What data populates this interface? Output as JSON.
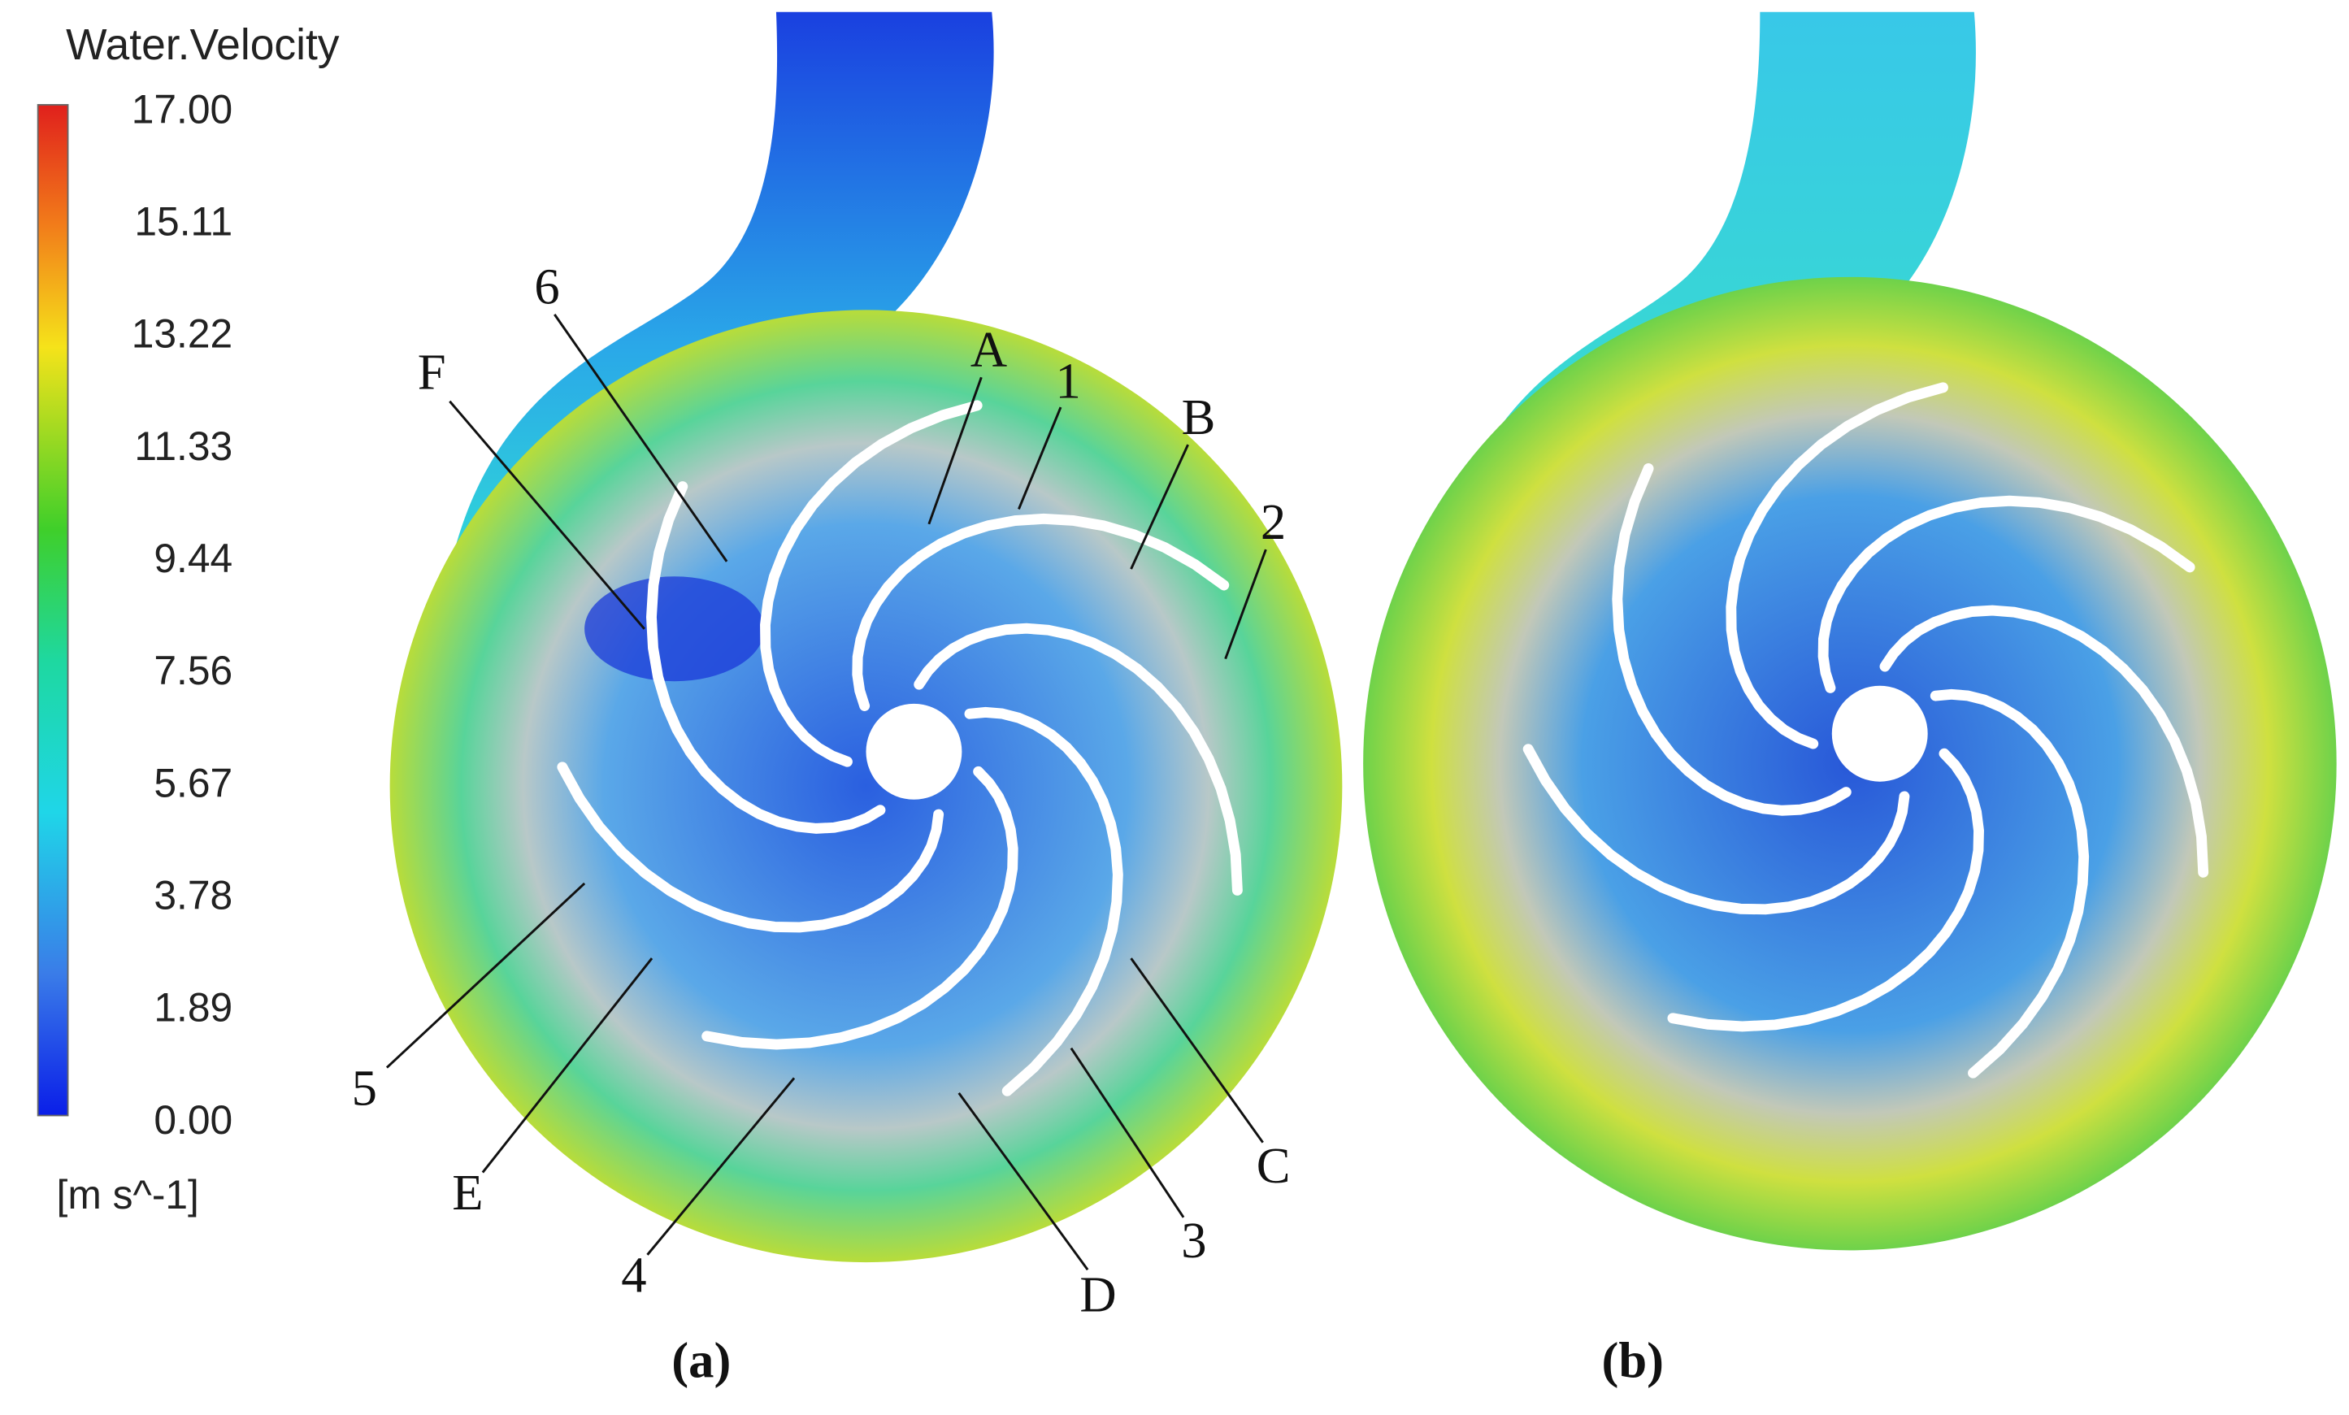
{
  "legend": {
    "title": "Water.Velocity",
    "ticks": [
      "17.00",
      "15.11",
      "13.22",
      "11.33",
      "9.44",
      "7.56",
      "5.67",
      "3.78",
      "1.89",
      "0.00"
    ],
    "unit": "[m s^-1]"
  },
  "panels": [
    {
      "caption": "(a)",
      "labels": [
        "6",
        "F",
        "A",
        "1",
        "B",
        "2",
        "5",
        "E",
        "4",
        "D",
        "3",
        "C"
      ]
    },
    {
      "caption": "(b)"
    }
  ]
}
